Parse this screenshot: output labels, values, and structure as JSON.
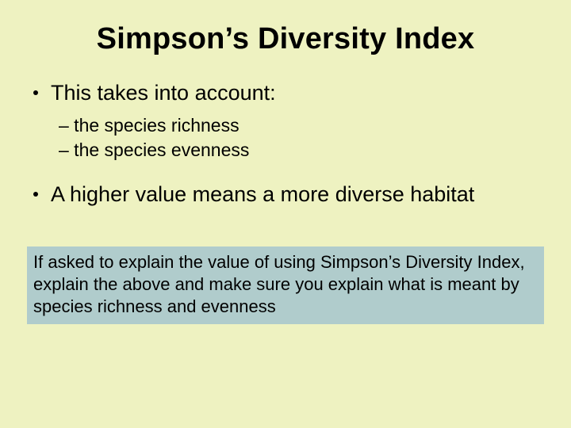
{
  "slide": {
    "background_color": "#eef2c1",
    "text_color": "#000000",
    "title": {
      "text": "Simpson’s Diversity Index",
      "font_size_pt": 38,
      "font_weight": "bold",
      "align": "center"
    },
    "bullets": [
      {
        "text": "This takes into account:",
        "font_size_pt": 27,
        "sub": [
          {
            "text": "– the species richness",
            "font_size_pt": 23
          },
          {
            "text": "– the species evenness",
            "font_size_pt": 23
          }
        ]
      },
      {
        "text": "A higher value means a more diverse habitat",
        "font_size_pt": 27,
        "sub": []
      }
    ],
    "callout": {
      "text": "If asked to explain the value of using Simpson’s Diversity Index, explain the above and make sure you explain what is meant by species richness and evenness",
      "background_color": "#b0cccc",
      "font_size_pt": 22
    }
  }
}
